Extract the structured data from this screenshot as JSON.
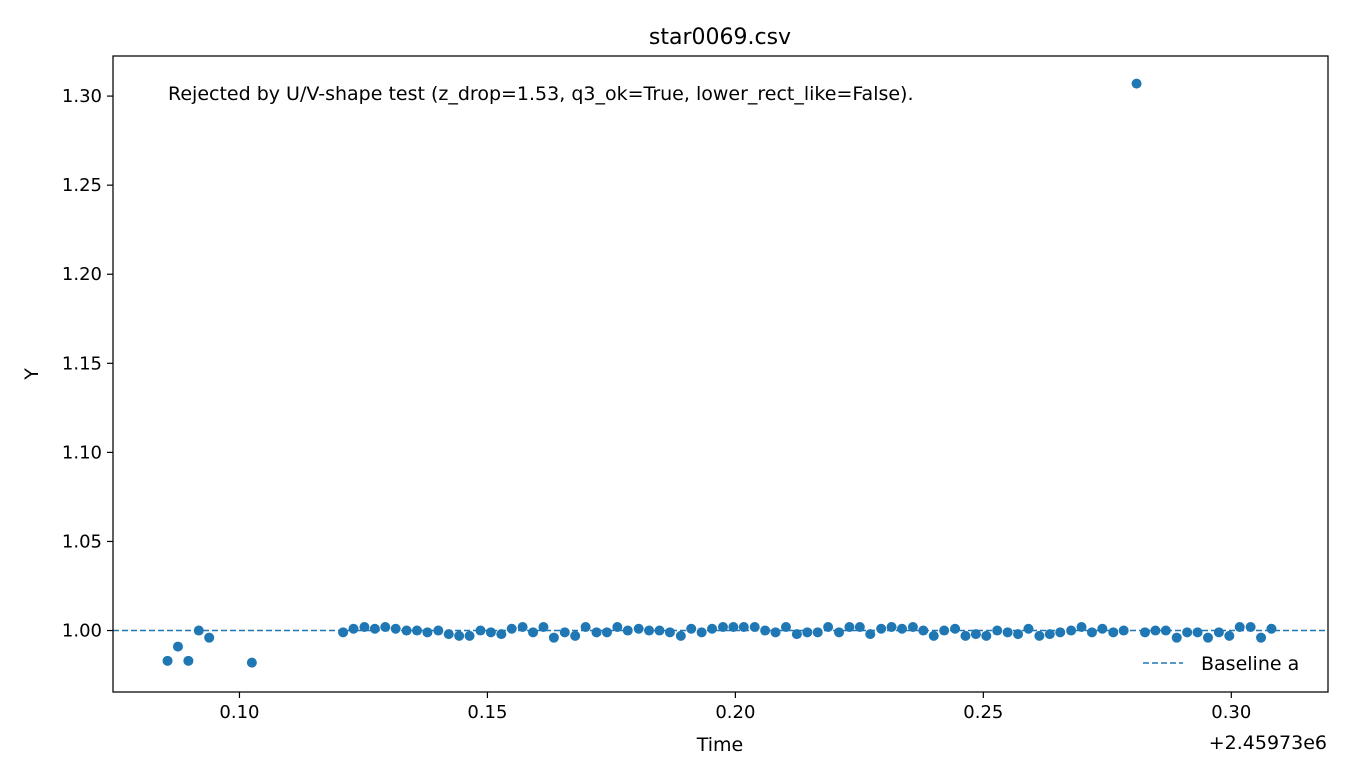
{
  "chart_data": {
    "type": "scatter",
    "title": "star0069.csv",
    "xlabel": "Time",
    "ylabel": "Y",
    "x_offset_label": "+2.45973e6",
    "annotation": "Rejected by U/V-shape test (z_drop=1.53, q3_ok=True, lower_rect_like=False).",
    "xlim": [
      0.0745,
      0.3195
    ],
    "ylim": [
      0.9655,
      1.3225
    ],
    "x_ticks": [
      0.1,
      0.15,
      0.2,
      0.25,
      0.3
    ],
    "x_tick_labels": [
      "0.10",
      "0.15",
      "0.20",
      "0.25",
      "0.30"
    ],
    "y_ticks": [
      1.0,
      1.05,
      1.1,
      1.15,
      1.2,
      1.25,
      1.3
    ],
    "y_tick_labels": [
      "1.00",
      "1.05",
      "1.10",
      "1.15",
      "1.20",
      "1.25",
      "1.30"
    ],
    "grid": false,
    "legend": {
      "position": "lower-right",
      "entries": [
        "Baseline a"
      ]
    },
    "baseline": {
      "name": "Baseline a",
      "y": 1.0,
      "color": "#1f77b4",
      "style": "dashed"
    },
    "series": [
      {
        "color": "#1f77b4",
        "x": [
          0.0855,
          0.0876,
          0.0897,
          0.0918,
          0.0939,
          0.1025,
          0.1209,
          0.123,
          0.1252,
          0.1273,
          0.1294,
          0.1315,
          0.1337,
          0.1358,
          0.1379,
          0.1401,
          0.1422,
          0.1443,
          0.1464,
          0.1486,
          0.1507,
          0.1528,
          0.1549,
          0.1571,
          0.1592,
          0.1613,
          0.1634,
          0.1656,
          0.1677,
          0.1698,
          0.172,
          0.1741,
          0.1762,
          0.1783,
          0.1805,
          0.1826,
          0.1847,
          0.1868,
          0.189,
          0.1911,
          0.1932,
          0.1953,
          0.1975,
          0.1996,
          0.2017,
          0.2039,
          0.206,
          0.2081,
          0.2102,
          0.2124,
          0.2145,
          0.2166,
          0.2187,
          0.2209,
          0.223,
          0.2251,
          0.2272,
          0.2294,
          0.2315,
          0.2336,
          0.2358,
          0.2379,
          0.24,
          0.2421,
          0.2443,
          0.2464,
          0.2485,
          0.2506,
          0.2528,
          0.2549,
          0.257,
          0.2591,
          0.2613,
          0.2634,
          0.2655,
          0.2677,
          0.2698,
          0.2719,
          0.274,
          0.2762,
          0.2783,
          0.2809,
          0.2826,
          0.2847,
          0.2868,
          0.289,
          0.2911,
          0.2932,
          0.2953,
          0.2975,
          0.2996,
          0.3017,
          0.3039,
          0.306,
          0.3081
        ],
        "y": [
          0.983,
          0.991,
          0.983,
          1.0,
          0.996,
          0.982,
          0.999,
          1.001,
          1.002,
          1.001,
          1.002,
          1.001,
          1.0,
          1.0,
          0.999,
          1.0,
          0.998,
          0.997,
          0.997,
          1.0,
          0.999,
          0.998,
          1.001,
          1.002,
          0.999,
          1.002,
          0.996,
          0.999,
          0.997,
          1.002,
          0.999,
          0.999,
          1.002,
          1.0,
          1.001,
          1.0,
          1.0,
          0.999,
          0.997,
          1.001,
          0.999,
          1.001,
          1.002,
          1.002,
          1.002,
          1.002,
          1.0,
          0.999,
          1.002,
          0.998,
          0.999,
          0.999,
          1.002,
          0.999,
          1.002,
          1.002,
          0.998,
          1.001,
          1.002,
          1.001,
          1.002,
          1.0,
          0.997,
          1.0,
          1.001,
          0.997,
          0.998,
          0.997,
          1.0,
          0.999,
          0.998,
          1.001,
          0.997,
          0.998,
          0.999,
          1.0,
          1.002,
          0.999,
          1.001,
          0.999,
          1.0,
          1.307,
          0.999,
          1.0,
          1.0,
          0.996,
          0.999,
          0.999,
          0.996,
          0.999,
          0.997,
          1.002,
          1.002,
          0.996,
          1.001
        ]
      }
    ]
  }
}
